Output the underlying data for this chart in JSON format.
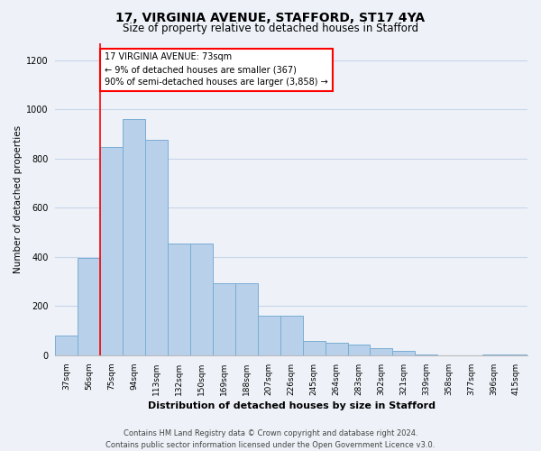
{
  "title_line1": "17, VIRGINIA AVENUE, STAFFORD, ST17 4YA",
  "title_line2": "Size of property relative to detached houses in Stafford",
  "xlabel": "Distribution of detached houses by size in Stafford",
  "ylabel": "Number of detached properties",
  "categories": [
    "37sqm",
    "56sqm",
    "75sqm",
    "94sqm",
    "113sqm",
    "132sqm",
    "150sqm",
    "169sqm",
    "188sqm",
    "207sqm",
    "226sqm",
    "245sqm",
    "264sqm",
    "283sqm",
    "302sqm",
    "321sqm",
    "339sqm",
    "358sqm",
    "377sqm",
    "396sqm",
    "415sqm"
  ],
  "values": [
    80,
    395,
    845,
    960,
    875,
    455,
    455,
    295,
    295,
    160,
    160,
    60,
    50,
    45,
    30,
    20,
    5,
    0,
    0,
    5,
    5
  ],
  "bar_color": "#b8d0ea",
  "bar_edge_color": "#7aadd4",
  "grid_color": "#c8d4e8",
  "annotation_text_line1": "17 VIRGINIA AVENUE: 73sqm",
  "annotation_text_line2": "← 9% of detached houses are smaller (367)",
  "annotation_text_line3": "90% of semi-detached houses are larger (3,858) →",
  "annotation_box_color": "white",
  "annotation_box_edge_color": "red",
  "vline_color": "red",
  "vline_x_index": 2,
  "ylim": [
    0,
    1270
  ],
  "yticks": [
    0,
    200,
    400,
    600,
    800,
    1000,
    1200
  ],
  "footer_line1": "Contains HM Land Registry data © Crown copyright and database right 2024.",
  "footer_line2": "Contains public sector information licensed under the Open Government Licence v3.0.",
  "background_color": "#eef2f8",
  "title1_fontsize": 10,
  "title2_fontsize": 8.5,
  "ylabel_fontsize": 7.5,
  "xlabel_fontsize": 8,
  "tick_fontsize": 6.5,
  "annotation_fontsize": 7,
  "footer_fontsize": 6
}
